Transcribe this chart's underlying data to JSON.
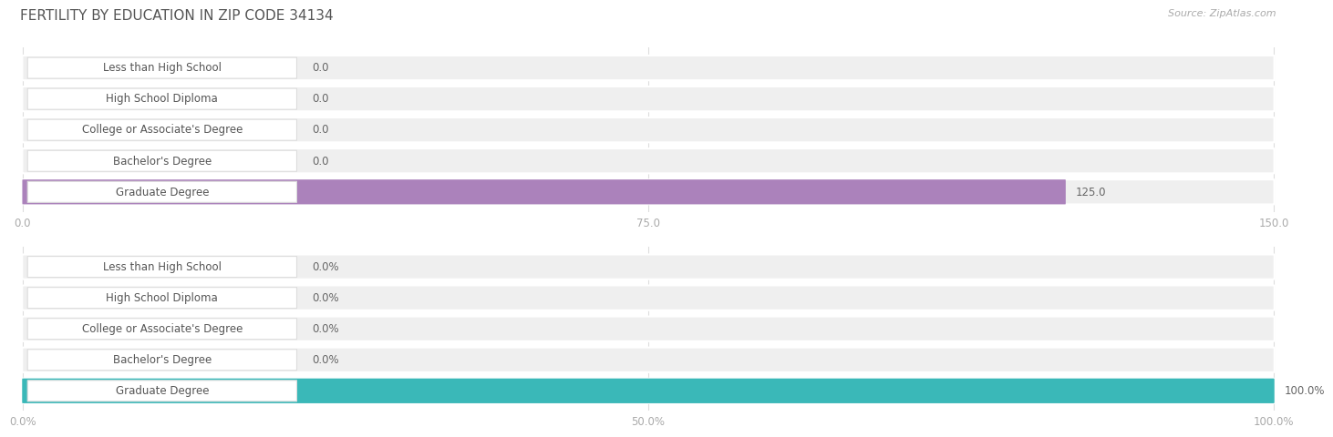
{
  "title": "FERTILITY BY EDUCATION IN ZIP CODE 34134",
  "source": "Source: ZipAtlas.com",
  "categories": [
    "Less than High School",
    "High School Diploma",
    "College or Associate's Degree",
    "Bachelor's Degree",
    "Graduate Degree"
  ],
  "values_abs": [
    0.0,
    0.0,
    0.0,
    0.0,
    125.0
  ],
  "values_pct": [
    0.0,
    0.0,
    0.0,
    0.0,
    100.0
  ],
  "xlim_abs": [
    0,
    150.0
  ],
  "xlim_pct": [
    0,
    100.0
  ],
  "xticks_abs": [
    0.0,
    75.0,
    150.0
  ],
  "xticks_pct": [
    0.0,
    50.0,
    100.0
  ],
  "bar_color_purple": "#c4a0cc",
  "bar_color_purple_dark": "#ab82bb",
  "bar_color_teal": "#72cece",
  "bar_color_teal_dark": "#3ab8b8",
  "row_bg": "#efefef",
  "label_bg": "#ffffff",
  "label_text_color": "#555555",
  "value_text_color": "#666666",
  "fig_bg": "#ffffff",
  "title_color": "#555555",
  "source_color": "#aaaaaa",
  "axis_tick_color": "#aaaaaa",
  "gridline_color": "#dddddd",
  "title_fontsize": 11,
  "label_fontsize": 8.5,
  "value_fontsize": 8.5,
  "tick_fontsize": 8.5
}
